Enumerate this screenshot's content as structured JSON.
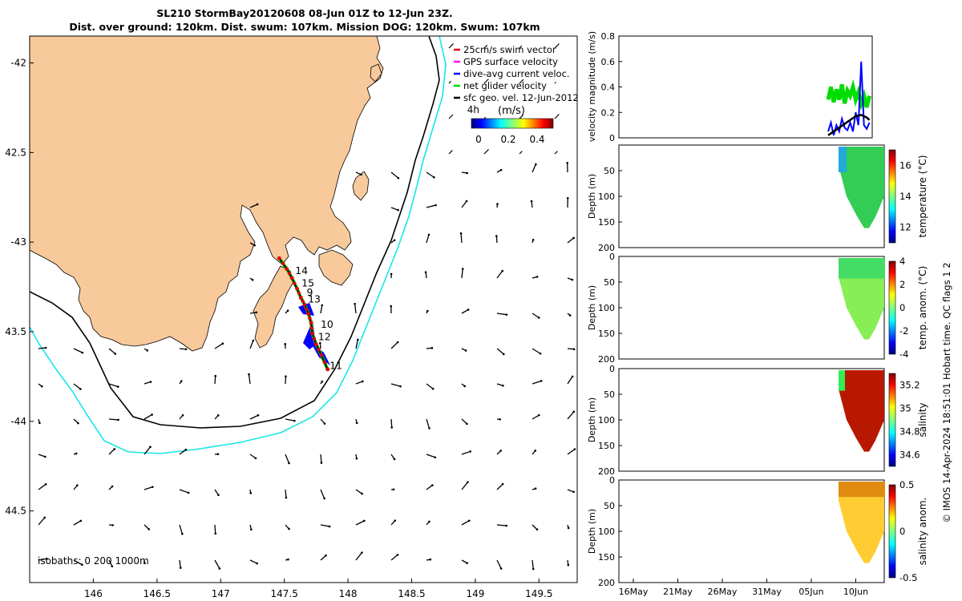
{
  "title": {
    "line1": "SL210 StormBay20120608 08-Jun 01Z to 12-Jun 23Z.",
    "line2": "Dist. over ground: 120km. Dist. swum: 107km. Mission DOG: 120km. Swum: 107km"
  },
  "colors": {
    "land": "#f8c99b",
    "isobath_200": "#000000",
    "isobath_1000": "#19e6e6",
    "track": "#e00000",
    "dive_avg": "#0000ff",
    "net_velocity": "#00dd00",
    "gps_velocity": "#ff00ff"
  },
  "chart_data": [
    {
      "type": "map",
      "id": "track-map",
      "xlim": [
        145.5,
        149.8
      ],
      "ylim": [
        -44.9,
        -41.85
      ],
      "xticks": [
        146,
        146.5,
        147,
        147.5,
        148,
        148.5,
        149,
        149.5
      ],
      "xtick_labels": [
        "146",
        "146.5",
        "147",
        "147.5",
        "148",
        "148.5",
        "149",
        "149.5"
      ],
      "yticks": [
        -42,
        -42.5,
        -43,
        -43.5,
        -44,
        -44.5
      ],
      "ytick_labels": [
        "-42",
        "42.5",
        "-43",
        "43.5",
        "-44",
        "44.5"
      ],
      "legend": [
        {
          "label": "25cm/s swim vector",
          "color": "#e00000"
        },
        {
          "label": "GPS surface velocity",
          "color": "#ff00ff"
        },
        {
          "label": "dive-avg current veloc.",
          "color": "#0000ff"
        },
        {
          "label": "net glider velocity",
          "color": "#00dd00"
        },
        {
          "label": "sfc geo. vel. 12-Jun-2012",
          "color": "#000000"
        }
      ],
      "time_marker": "4h",
      "colorbar": {
        "label": "(m/s)",
        "ticks": [
          "0",
          "0.2",
          "0.4"
        ],
        "range": [
          0,
          0.5
        ]
      },
      "isobath_label": "isobaths: 0   200  1000m",
      "track": [
        [
          147.46,
          -43.09
        ],
        [
          147.52,
          -43.15
        ],
        [
          147.56,
          -43.2
        ],
        [
          147.6,
          -43.26
        ],
        [
          147.63,
          -43.31
        ],
        [
          147.66,
          -43.35
        ],
        [
          147.69,
          -43.4
        ],
        [
          147.71,
          -43.45
        ],
        [
          147.72,
          -43.51
        ],
        [
          147.75,
          -43.57
        ],
        [
          147.79,
          -43.63
        ],
        [
          147.84,
          -43.71
        ]
      ],
      "day_labels": [
        {
          "label": "14",
          "lon": 147.56,
          "lat": -43.16
        },
        {
          "label": "15",
          "lon": 147.61,
          "lat": -43.23
        },
        {
          "label": "9",
          "lon": 147.65,
          "lat": -43.28
        },
        {
          "label": "13",
          "lon": 147.66,
          "lat": -43.32
        },
        {
          "label": "10",
          "lon": 147.76,
          "lat": -43.46
        },
        {
          "label": "12",
          "lon": 147.74,
          "lat": -43.53
        },
        {
          "label": "11",
          "lon": 147.83,
          "lat": -43.69
        }
      ]
    },
    {
      "type": "line",
      "id": "velocity-timeseries",
      "xlabel": "",
      "ylabel": "velocity magnitude (m/s)",
      "ylim": [
        0,
        0.8
      ],
      "yticks": [
        "0",
        "0.2",
        "0.4",
        "0.6",
        "0.8"
      ],
      "xlim_days": [
        0,
        46
      ],
      "series": [
        {
          "name": "net glider velocity",
          "color": "#00dd00",
          "x": [
            38,
            38.5,
            39,
            39.5,
            40,
            40.5,
            41,
            41.5,
            42,
            42.5,
            43,
            43.5,
            44,
            44.5,
            45,
            45.5
          ],
          "y": [
            0.3,
            0.4,
            0.28,
            0.38,
            0.3,
            0.42,
            0.27,
            0.37,
            0.33,
            0.4,
            0.3,
            0.36,
            0.27,
            0.33,
            0.24,
            0.33
          ]
        },
        {
          "name": "dive-avg current veloc.",
          "color": "#0000ff",
          "x": [
            38,
            38.5,
            39,
            39.5,
            40,
            40.5,
            41,
            41.5,
            42,
            42.5,
            43,
            43.5,
            44,
            44.5,
            45,
            45.5
          ],
          "y": [
            0.05,
            0.12,
            0.02,
            0.1,
            0.05,
            0.15,
            0.08,
            0.06,
            0.12,
            0.05,
            0.2,
            0.1,
            0.6,
            0.1,
            0.07,
            0.12
          ]
        },
        {
          "name": "sfc geo. vel.",
          "color": "#000000",
          "x": [
            38,
            39,
            40,
            41,
            42,
            43,
            44,
            45,
            45.5
          ],
          "y": [
            0.02,
            0.05,
            0.08,
            0.11,
            0.14,
            0.17,
            0.18,
            0.16,
            0.14
          ]
        }
      ]
    },
    {
      "type": "heatmap",
      "id": "temperature-section",
      "ylabel": "Depth (m)",
      "yticks": [
        "50",
        "100",
        "150",
        "200"
      ],
      "colorbar_label": "temperature (°C)",
      "colorbar_ticks": [
        "16",
        "14",
        "12"
      ],
      "crange": [
        11,
        17
      ],
      "max_depth": 200
    },
    {
      "type": "heatmap",
      "id": "temp-anomaly-section",
      "ylabel": "Depth (m)",
      "yticks": [
        "0",
        "50",
        "100",
        "150",
        "200"
      ],
      "colorbar_label": "temp. anom. (°C)",
      "colorbar_ticks": [
        "4",
        "2",
        "0",
        "-2",
        "-4"
      ],
      "crange": [
        -4,
        4
      ],
      "max_depth": 200
    },
    {
      "type": "heatmap",
      "id": "salinity-section",
      "ylabel": "Depth (m)",
      "yticks": [
        "0",
        "50",
        "100",
        "150",
        "200"
      ],
      "colorbar_label": "salinity",
      "colorbar_ticks": [
        "35.2",
        "35",
        "34.8",
        "34.6"
      ],
      "crange": [
        34.5,
        35.3
      ],
      "max_depth": 200
    },
    {
      "type": "heatmap",
      "id": "salinity-anomaly-section",
      "ylabel": "Depth (m)",
      "yticks": [
        "0",
        "50",
        "100",
        "150",
        "200"
      ],
      "colorbar_label": "salinity anom.",
      "colorbar_ticks": [
        "0.5",
        "0",
        "-0.5"
      ],
      "crange": [
        -0.5,
        0.5
      ],
      "max_depth": 200,
      "xtick_labels": [
        "16May",
        "21May",
        "26May",
        "31May",
        "05Jun",
        "10Jun"
      ]
    }
  ],
  "side_label": "© IMOS 14-Apr-2024 18:51:01 Hobart time. QC flags 1  2"
}
